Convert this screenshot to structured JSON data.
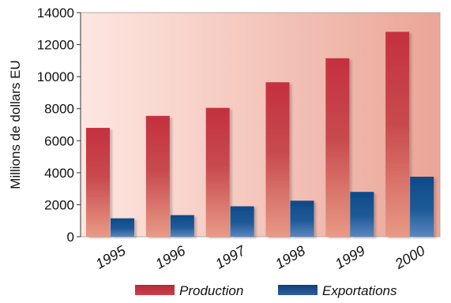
{
  "chart_data": {
    "type": "bar",
    "title": "",
    "xlabel": "",
    "ylabel": "Millions de dollars EU",
    "categories": [
      "1995",
      "1996",
      "1997",
      "1998",
      "1999",
      "2000"
    ],
    "series": [
      {
        "name": "Production",
        "values": [
          6800,
          7550,
          8050,
          9650,
          11150,
          12800
        ]
      },
      {
        "name": "Exportations",
        "values": [
          1150,
          1350,
          1900,
          2250,
          2800,
          3750
        ]
      }
    ],
    "ylim": [
      0,
      14000
    ],
    "yticks": [
      "0",
      "2000",
      "4000",
      "6000",
      "8000",
      "10000",
      "12000",
      "14000"
    ],
    "grid": false,
    "legend_position": "bottom",
    "colors": {
      "production_top": "#c4303f",
      "production_bottom": "#e89a86",
      "exportations_top": "#0d4a8a",
      "exportations_bottom": "#5a86bf",
      "background_left": "#fde7e1",
      "background_right": "#eaa597",
      "frame": "#b9a8a6"
    }
  }
}
